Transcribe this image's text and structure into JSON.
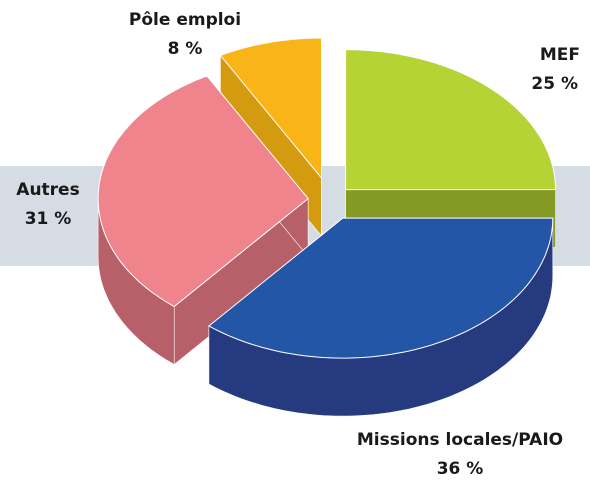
{
  "chart_data": {
    "type": "pie3d",
    "categories": [
      "MEF",
      "Missions locales/PAIO",
      "Autres",
      "Pôle emploi"
    ],
    "values": [
      25,
      36,
      31,
      8
    ],
    "value_labels": [
      "25 %",
      "36 %",
      "31 %",
      "8 %"
    ],
    "colors": [
      "#b5d334",
      "#2356a6",
      "#f0848d",
      "#f9b418"
    ],
    "side_colors": [
      "#849a24",
      "#263a80",
      "#b8606a",
      "#d49a10"
    ]
  }
}
